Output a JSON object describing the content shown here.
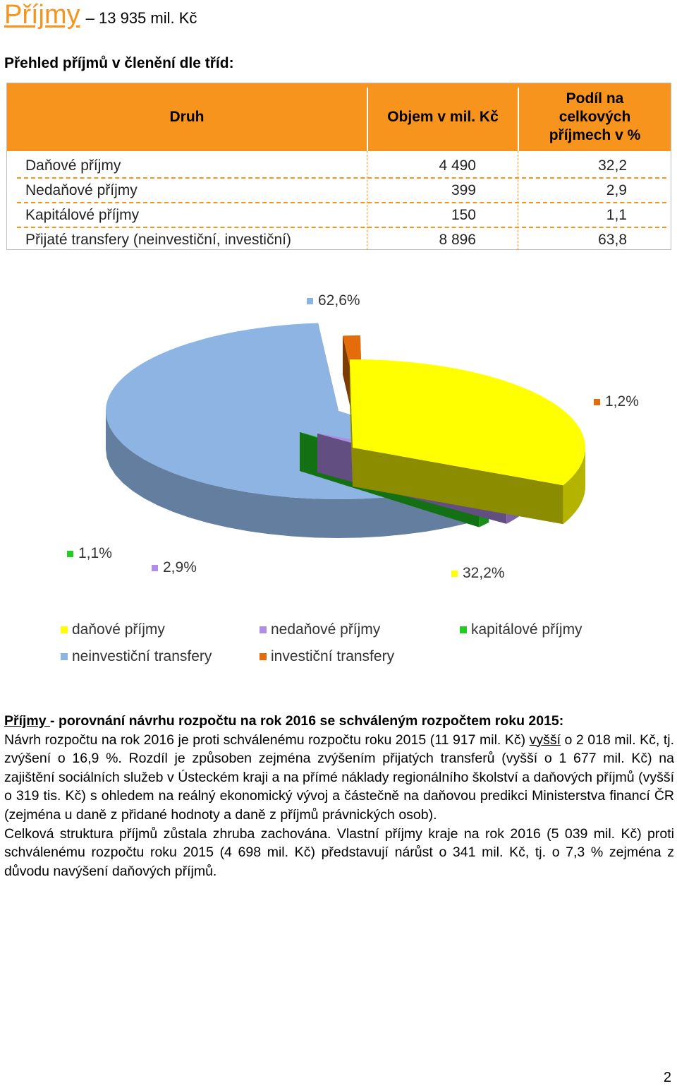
{
  "header": {
    "title": "Příjmy ",
    "amount": "– 13 935 mil. Kč",
    "subtitle": "Přehled příjmů v členění dle tříd:"
  },
  "table": {
    "columns": [
      "Druh",
      "Objem v mil. Kč",
      "Podíl na celkových příjmech v %"
    ],
    "rows": [
      {
        "name": "Daňové příjmy",
        "value": "4 490",
        "share": "32,2"
      },
      {
        "name": "Nedaňové příjmy",
        "value": "399",
        "share": "2,9"
      },
      {
        "name": "Kapitálové příjmy",
        "value": "150",
        "share": "1,1"
      },
      {
        "name": "Přijaté transfery (neinvestiční, investiční)",
        "value": "8 896",
        "share": "63,8"
      }
    ]
  },
  "chart_data": {
    "type": "pie",
    "slices": [
      {
        "label": "neinvestiční transfery",
        "value": 62.6,
        "value_label": "62,6%",
        "color": "#8DB4E2"
      },
      {
        "label": "investiční transfery",
        "value": 1.2,
        "value_label": "1,2%",
        "color": "#E46C0A"
      },
      {
        "label": "daňové příjmy",
        "value": 32.2,
        "value_label": "32,2%",
        "color": "#FFFF00"
      },
      {
        "label": "nedaňové příjmy",
        "value": 2.9,
        "value_label": "2,9%",
        "color": "#B28DE8"
      },
      {
        "label": "kapitálové příjmy",
        "value": 1.1,
        "value_label": "1,1%",
        "color": "#22CC22"
      }
    ],
    "legend": [
      {
        "label": "daňové příjmy",
        "color": "#FFFF00"
      },
      {
        "label": "nedaňové příjmy",
        "color": "#B28DE8"
      },
      {
        "label": "kapitálové příjmy",
        "color": "#22CC22"
      },
      {
        "label": "neinvestiční transfery",
        "color": "#8DB4E2"
      },
      {
        "label": "investiční transfery",
        "color": "#E46C0A"
      }
    ],
    "legend_position": "bottom"
  },
  "section": {
    "heading_link": "Příjmy ",
    "heading_rest": "- porovnání návrhu rozpočtu na rok 2016 se schváleným rozpočtem roku 2015:",
    "p1_start": "Návrh rozpočtu na rok 2016 je proti schválenému rozpočtu roku 2015 (11 917 mil. Kč) ",
    "p1_under": "vyšší",
    "p1_rest": " o 2 018 mil. Kč, tj. zvýšení o 16,9 %. Rozdíl je způsoben zejména zvýšením přijatých transferů (vyšší o 1 677 mil. Kč) na zajištění sociálních služeb v Ústeckém kraji a na přímé náklady regionálního školství a daňových příjmů (vyšší o 319 tis. Kč) s ohledem na reálný ekonomický vývoj a částečně na daňovou predikci Ministerstva financí ČR (zejména u daně z přidané hodnoty a daně z příjmů právnických osob).",
    "p2": "Celková struktura příjmů zůstala zhruba zachována. Vlastní příjmy kraje na rok 2016 (5 039 mil. Kč) proti schválenému rozpočtu roku 2015 (4 698 mil. Kč) představují nárůst o 341 mil. Kč, tj. o 7,3 % zejména z důvodu navýšení daňových příjmů."
  },
  "page_number": "2"
}
